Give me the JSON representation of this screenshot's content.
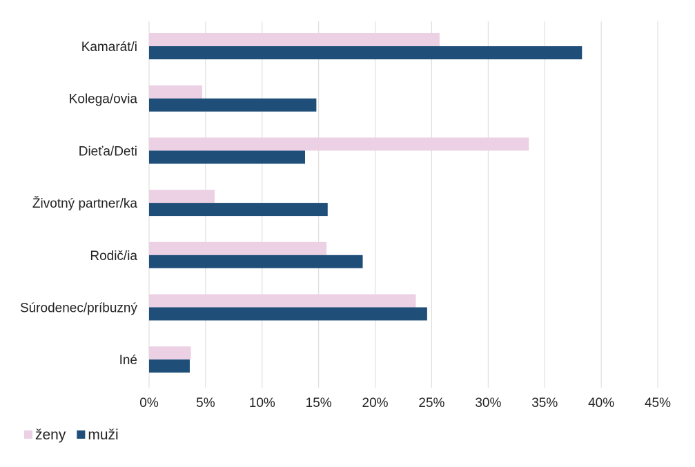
{
  "chart_data": {
    "type": "bar",
    "orientation": "horizontal",
    "categories": [
      "Kamarát/i",
      "Kolega/ovia",
      "Dieťa/Deti",
      "Životný partner/ka",
      "Rodič/ia",
      "Súrodenec/príbuzný",
      "Iné"
    ],
    "series": [
      {
        "name": "ženy",
        "color": "#ecd1e5",
        "values": [
          25.7,
          4.7,
          33.6,
          5.8,
          15.7,
          23.6,
          3.7
        ]
      },
      {
        "name": "muži",
        "color": "#1f4e79",
        "values": [
          38.3,
          14.8,
          13.8,
          15.8,
          18.9,
          24.6,
          3.6
        ]
      }
    ],
    "xlim": [
      0,
      45
    ],
    "x_ticks": [
      "0%",
      "5%",
      "10%",
      "15%",
      "20%",
      "25%",
      "30%",
      "35%",
      "40%",
      "45%"
    ],
    "grid": true,
    "legend_position": "bottom-left"
  }
}
